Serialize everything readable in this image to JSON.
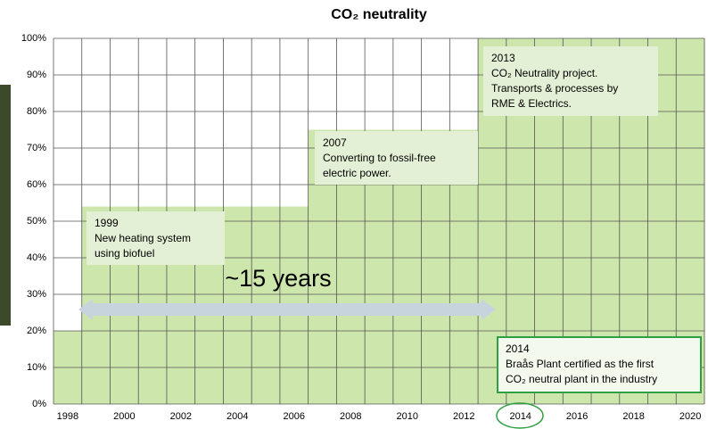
{
  "chart_data": {
    "type": "step-area",
    "title": "CO₂ neutrality",
    "categories": [
      "1998",
      null,
      "2000",
      null,
      "2002",
      null,
      "2004",
      null,
      "2006",
      null,
      "2008",
      null,
      "2010",
      null,
      "2012",
      null,
      "2014",
      null,
      "2016",
      null,
      "2018",
      null,
      "2020"
    ],
    "values": [
      20,
      54,
      54,
      54,
      54,
      54,
      54,
      54,
      54,
      75,
      75,
      75,
      75,
      75,
      75,
      100,
      100,
      100,
      100,
      100,
      100,
      100,
      100
    ],
    "color": "#cde6ab",
    "ylim": [
      0,
      100
    ],
    "yticks": [
      {
        "value": 0,
        "label": "0%"
      },
      {
        "value": 10,
        "label": "10%"
      },
      {
        "value": 20,
        "label": "20%"
      },
      {
        "value": 30,
        "label": "30%"
      },
      {
        "value": 40,
        "label": "40%"
      },
      {
        "value": 50,
        "label": "50%"
      },
      {
        "value": 60,
        "label": "60%"
      },
      {
        "value": 70,
        "label": "70%"
      },
      {
        "value": 80,
        "label": "80%"
      },
      {
        "value": 90,
        "label": "90%"
      },
      {
        "value": 100,
        "label": "100%"
      }
    ],
    "grid": true,
    "annotations": [
      {
        "lines": [
          "1999",
          "New heating system",
          "using biofuel"
        ]
      },
      {
        "lines": [
          "2007",
          "Converting to fossil-free",
          "electric power."
        ]
      },
      {
        "lines": [
          "2013",
          "CO₂ Neutrality project.",
          "Transports & processes by",
          "RME & Electrics."
        ]
      },
      {
        "lines": [
          "2014",
          "Braås Plant certified as the first",
          "CO₂ neutral plant in the industry"
        ]
      }
    ],
    "span_label": "~15 years"
  }
}
